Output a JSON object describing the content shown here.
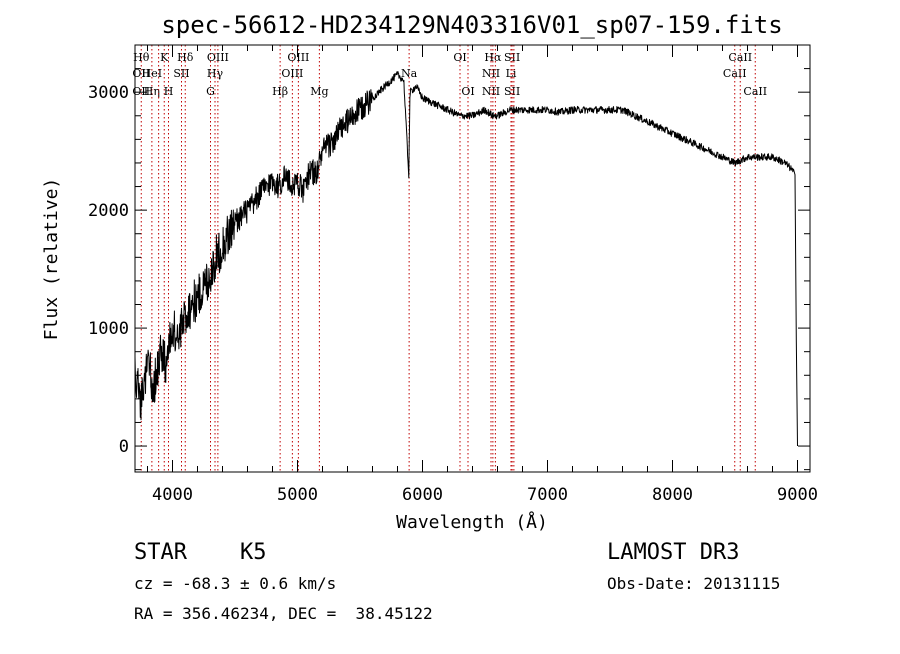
{
  "chart_data": {
    "type": "line",
    "title": "spec-56612-HD234129N403316V01_sp07-159.fits",
    "xlabel": "Wavelength (Å)",
    "ylabel": "Flux (relative)",
    "xlim": [
      3700,
      9100
    ],
    "ylim": [
      -220,
      3400
    ],
    "xticks": [
      4000,
      5000,
      6000,
      7000,
      8000,
      9000
    ],
    "yticks": [
      0,
      1000,
      2000,
      3000
    ],
    "series": [
      {
        "name": "spectrum",
        "x": [
          3700,
          3750,
          3800,
          3850,
          3900,
          3950,
          4000,
          4050,
          4100,
          4150,
          4200,
          4250,
          4300,
          4350,
          4400,
          4450,
          4500,
          4550,
          4600,
          4650,
          4700,
          4750,
          4800,
          4850,
          4900,
          4950,
          5000,
          5050,
          5100,
          5150,
          5200,
          5250,
          5300,
          5350,
          5400,
          5450,
          5500,
          5550,
          5600,
          5650,
          5700,
          5750,
          5800,
          5850,
          5890,
          5900,
          5950,
          6000,
          6100,
          6200,
          6300,
          6400,
          6500,
          6560,
          6600,
          6700,
          6800,
          6900,
          7000,
          7100,
          7200,
          7300,
          7400,
          7500,
          7600,
          7700,
          7800,
          7900,
          8000,
          8100,
          8200,
          8300,
          8400,
          8500,
          8600,
          8700,
          8800,
          8900,
          8950,
          8980,
          8990,
          9000
        ],
        "y": [
          600,
          400,
          700,
          500,
          800,
          700,
          1000,
          900,
          1100,
          1200,
          1250,
          1350,
          1450,
          1600,
          1700,
          1800,
          1900,
          1950,
          2000,
          2050,
          2150,
          2200,
          2250,
          2200,
          2300,
          2200,
          2250,
          2150,
          2350,
          2300,
          2500,
          2550,
          2600,
          2700,
          2750,
          2800,
          2850,
          2900,
          2950,
          3000,
          3050,
          3100,
          3150,
          3100,
          2300,
          3000,
          3050,
          2950,
          2900,
          2850,
          2800,
          2800,
          2850,
          2800,
          2800,
          2850,
          2850,
          2850,
          2850,
          2830,
          2850,
          2850,
          2850,
          2850,
          2850,
          2800,
          2750,
          2700,
          2650,
          2600,
          2550,
          2500,
          2450,
          2400,
          2450,
          2450,
          2450,
          2400,
          2350,
          2300,
          900,
          0
        ]
      }
    ],
    "line_markers": [
      {
        "x": 3750,
        "labels": [
          "Hθ",
          "OII",
          "OII"
        ]
      },
      {
        "x": 3835,
        "labels": [
          "",
          "HeI",
          "Hη"
        ]
      },
      {
        "x": 3889,
        "labels": [
          "",
          "",
          ""
        ]
      },
      {
        "x": 3934,
        "labels": [
          "K",
          "",
          ""
        ]
      },
      {
        "x": 3968,
        "labels": [
          "",
          "",
          "H"
        ]
      },
      {
        "x": 4072,
        "labels": [
          "",
          "SII",
          ""
        ]
      },
      {
        "x": 4102,
        "labels": [
          "Hδ",
          "",
          ""
        ]
      },
      {
        "x": 4304,
        "labels": [
          "",
          "",
          "G"
        ]
      },
      {
        "x": 4340,
        "labels": [
          "",
          "Hγ",
          ""
        ]
      },
      {
        "x": 4363,
        "labels": [
          "OIII",
          "",
          ""
        ]
      },
      {
        "x": 4861,
        "labels": [
          "",
          "",
          "Hβ"
        ]
      },
      {
        "x": 4959,
        "labels": [
          "",
          "OIII",
          ""
        ]
      },
      {
        "x": 5007,
        "labels": [
          "OIII",
          "",
          ""
        ]
      },
      {
        "x": 5175,
        "labels": [
          "",
          "",
          "Mg"
        ]
      },
      {
        "x": 5893,
        "labels": [
          "",
          "Na",
          ""
        ]
      },
      {
        "x": 6300,
        "labels": [
          "OI",
          "",
          ""
        ]
      },
      {
        "x": 6364,
        "labels": [
          "",
          "",
          "OI"
        ]
      },
      {
        "x": 6548,
        "labels": [
          "",
          "NII",
          "NII"
        ]
      },
      {
        "x": 6563,
        "labels": [
          "Hα",
          "",
          ""
        ]
      },
      {
        "x": 6583,
        "labels": [
          "",
          "",
          ""
        ]
      },
      {
        "x": 6708,
        "labels": [
          "",
          "Li",
          ""
        ]
      },
      {
        "x": 6717,
        "labels": [
          "SII",
          "",
          "SII"
        ]
      },
      {
        "x": 6731,
        "labels": [
          "",
          "",
          ""
        ]
      },
      {
        "x": 8498,
        "labels": [
          "",
          "CaII",
          ""
        ]
      },
      {
        "x": 8542,
        "labels": [
          "CaII",
          "",
          ""
        ]
      },
      {
        "x": 8662,
        "labels": [
          "",
          "",
          "CaII"
        ]
      }
    ]
  },
  "info": {
    "class": "STAR",
    "subclass": "K5",
    "survey": "LAMOST DR3",
    "redshift": "cz = -68.3 ± 0.6 km/s",
    "obs_date": "Obs-Date: 20131115",
    "coords": "RA = 356.46234, DEC =  38.45122"
  }
}
